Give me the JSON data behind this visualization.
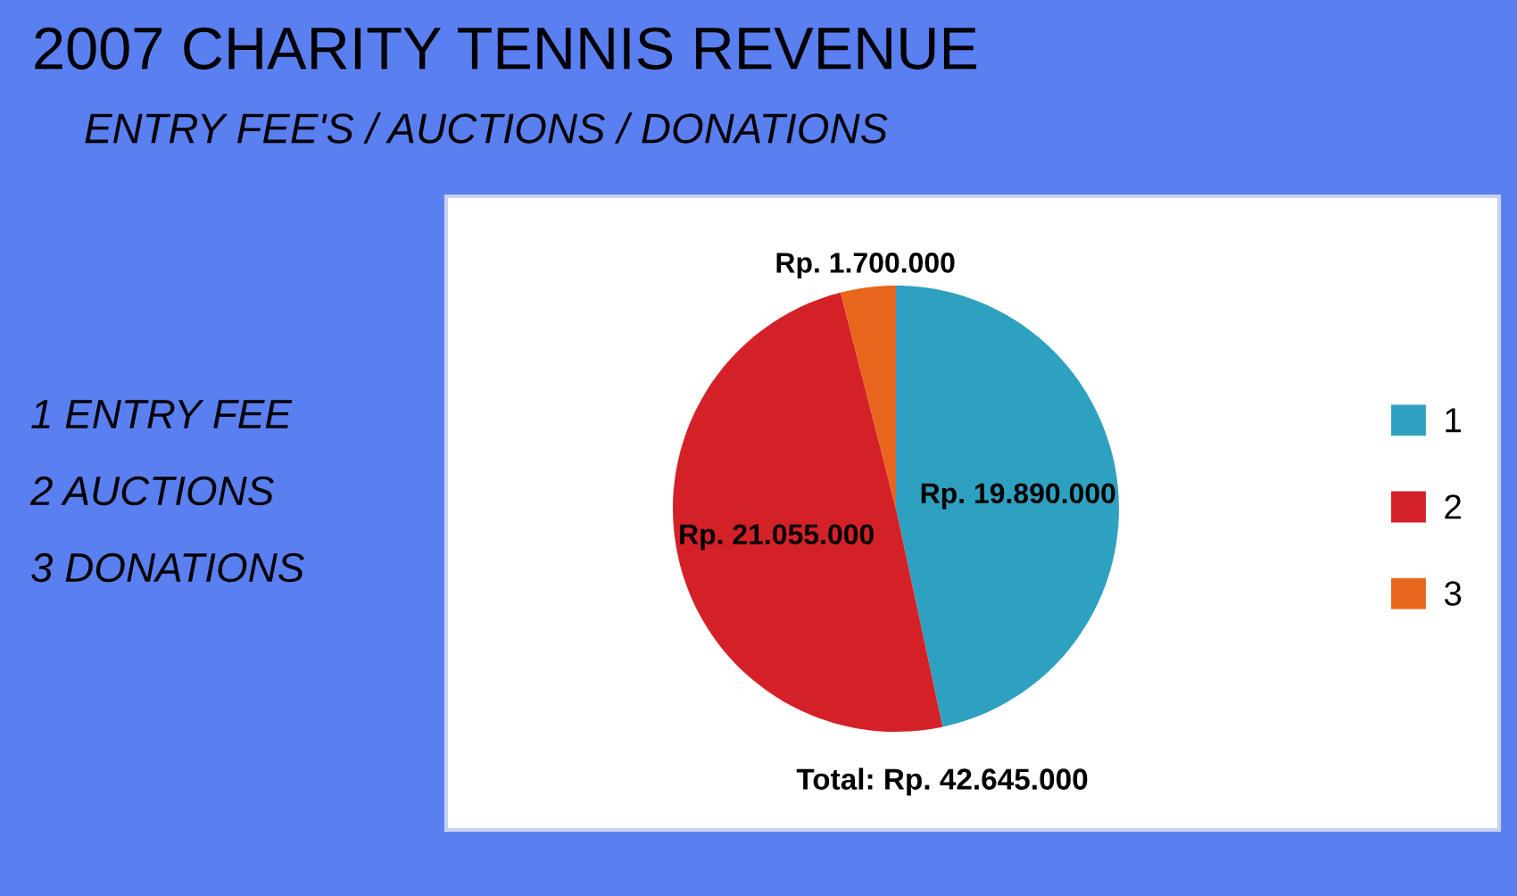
{
  "chart_data": {
    "type": "pie",
    "title": "2007 CHARITY TENNIS REVENUE",
    "subtitle": "ENTRY FEE'S / AUCTIONS / DONATIONS",
    "categories": [
      "1",
      "2",
      "3"
    ],
    "values": [
      19890000,
      21055000,
      1700000
    ],
    "colors": [
      "#2fa1c0",
      "#d42128",
      "#e8661c"
    ],
    "value_labels": [
      "Rp. 19.890.000",
      "Rp. 21.055.000",
      "Rp. 1.700.000"
    ],
    "legend": "right",
    "annotations": [
      "1 ENTRY FEE",
      "2 AUCTIONS",
      "3 DONATIONS",
      "Total: Rp. 42.645.000"
    ]
  }
}
